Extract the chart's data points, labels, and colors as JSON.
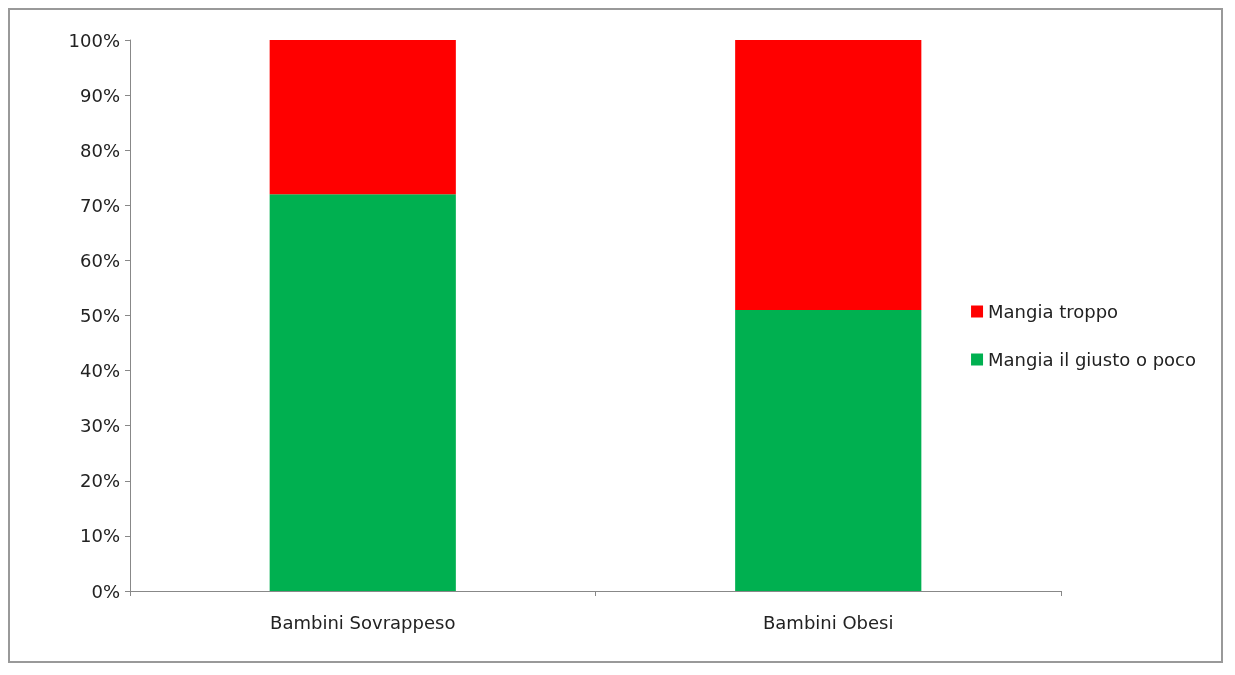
{
  "chart_data": {
    "type": "bar",
    "stacked": true,
    "categories": [
      "Bambini Sovrappeso",
      "Bambini Obesi"
    ],
    "series": [
      {
        "name": "Mangia il giusto o poco",
        "color": "#00b050",
        "values": [
          72,
          51
        ]
      },
      {
        "name": "Mangia troppo",
        "color": "#ff0000",
        "values": [
          28,
          49
        ]
      }
    ],
    "ylim": [
      0,
      100
    ],
    "yticks": [
      {
        "value": 0,
        "label": "0%"
      },
      {
        "value": 10,
        "label": "10%"
      },
      {
        "value": 20,
        "label": "20%"
      },
      {
        "value": 30,
        "label": "30%"
      },
      {
        "value": 40,
        "label": "40%"
      },
      {
        "value": 50,
        "label": "50%"
      },
      {
        "value": 60,
        "label": "60%"
      },
      {
        "value": 70,
        "label": "70%"
      },
      {
        "value": 80,
        "label": "80%"
      },
      {
        "value": 90,
        "label": "90%"
      },
      {
        "value": 100,
        "label": "100%"
      }
    ],
    "grid": false,
    "legend": "right"
  }
}
